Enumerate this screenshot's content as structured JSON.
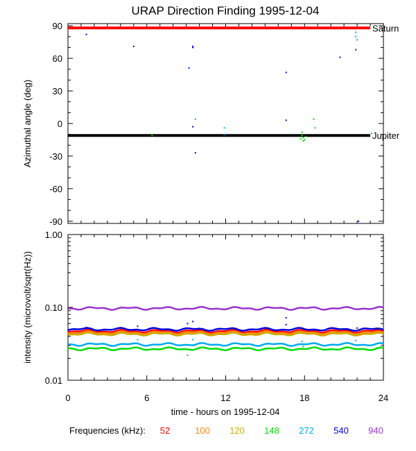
{
  "chart_data": {
    "title": "URAP Direction Finding  1995-12-04",
    "xlabel": "time - hours on 1995-12-04",
    "xlim": [
      0,
      24
    ],
    "x_ticks": [
      0,
      6,
      12,
      18,
      24
    ],
    "panels": [
      {
        "id": "azimuth",
        "type": "scatter",
        "ylabel": "Azimuthal angle (deg)",
        "ylim": [
          -92,
          92
        ],
        "y_ticks": [
          90,
          60,
          30,
          0,
          -30,
          -60,
          -90
        ],
        "reference_lines": [
          {
            "name": "Saturn",
            "y": 88,
            "color": "#ff0000",
            "x_from": 0,
            "x_to": 23
          },
          {
            "name": "Jupiter",
            "y": -11,
            "color": "#000000",
            "x_from": 0,
            "x_to": 23
          }
        ],
        "points": [
          {
            "x": 1.4,
            "y": 82,
            "color": "#0000dd"
          },
          {
            "x": 5.0,
            "y": 71,
            "color": "#0000dd"
          },
          {
            "x": 9.5,
            "y": 71,
            "color": "#0000dd"
          },
          {
            "x": 9.5,
            "y": 70,
            "color": "#0000dd"
          },
          {
            "x": 9.2,
            "y": 51,
            "color": "#0000dd"
          },
          {
            "x": 9.5,
            "y": -3,
            "color": "#0000dd"
          },
          {
            "x": 9.7,
            "y": 4,
            "color": "#00aaee"
          },
          {
            "x": 9.7,
            "y": -27,
            "color": "#0000dd"
          },
          {
            "x": 6.4,
            "y": -11,
            "color": "#00dd00"
          },
          {
            "x": 11.9,
            "y": -4,
            "color": "#00aaee"
          },
          {
            "x": 11.9,
            "y": -10,
            "color": "#00aaee"
          },
          {
            "x": 16.6,
            "y": 47,
            "color": "#0000dd"
          },
          {
            "x": 16.6,
            "y": 3,
            "color": "#0000dd"
          },
          {
            "x": 17.8,
            "y": -8,
            "color": "#00dd00"
          },
          {
            "x": 17.8,
            "y": -11,
            "color": "#00dd00"
          },
          {
            "x": 17.9,
            "y": -13,
            "color": "#00dd00"
          },
          {
            "x": 18.0,
            "y": -15,
            "color": "#00dd00"
          },
          {
            "x": 17.7,
            "y": -14,
            "color": "#00dd00"
          },
          {
            "x": 18.1,
            "y": -12,
            "color": "#00dd00"
          },
          {
            "x": 17.9,
            "y": -16,
            "color": "#00dd00"
          },
          {
            "x": 18.7,
            "y": 4,
            "color": "#00dd00"
          },
          {
            "x": 18.8,
            "y": -4,
            "color": "#00dd00"
          },
          {
            "x": 20.7,
            "y": 61,
            "color": "#0000dd"
          },
          {
            "x": 21.9,
            "y": 84,
            "color": "#00aaee"
          },
          {
            "x": 21.9,
            "y": 80,
            "color": "#00aaee"
          },
          {
            "x": 22.0,
            "y": 77,
            "color": "#00aaee"
          },
          {
            "x": 21.9,
            "y": 68,
            "color": "#0000dd"
          },
          {
            "x": 22.1,
            "y": -90,
            "color": "#0000dd"
          },
          {
            "x": 23.1,
            "y": -9,
            "color": "#00aaee"
          }
        ]
      },
      {
        "id": "intensity",
        "type": "line",
        "ylabel": "intensity (microvolt/sqrt(Hz))",
        "y_scale": "log",
        "ylim": [
          0.01,
          1.0
        ],
        "y_ticks": [
          1.0,
          0.1,
          0.01
        ],
        "y_tick_labels": [
          "1.00",
          "0.10",
          "0.01"
        ],
        "series": [
          {
            "frequency": "52",
            "color": "#ff0000",
            "level": 0.047,
            "spikes": []
          },
          {
            "frequency": "100",
            "color": "#ff8800",
            "level": 0.045,
            "spikes": []
          },
          {
            "frequency": "120",
            "color": "#ccaa00",
            "level": 0.043,
            "spikes": []
          },
          {
            "frequency": "148",
            "color": "#00dd00",
            "level": 0.027,
            "spikes": [
              [
                9.6,
                0.03
              ],
              [
                17.9,
                0.029
              ]
            ]
          },
          {
            "frequency": "272",
            "color": "#00aaee",
            "level": 0.031,
            "spikes": [
              [
                5.3,
                0.036
              ],
              [
                9.5,
                0.036
              ],
              [
                9.1,
                0.022
              ],
              [
                17.8,
                0.034
              ],
              [
                21.9,
                0.035
              ]
            ]
          },
          {
            "frequency": "540",
            "color": "#0000dd",
            "level": 0.05,
            "spikes": [
              [
                1.4,
                0.053
              ],
              [
                5.3,
                0.055
              ],
              [
                9.1,
                0.06
              ],
              [
                9.5,
                0.064
              ],
              [
                16.6,
                0.072
              ],
              [
                16.6,
                0.058
              ],
              [
                22.0,
                0.052
              ]
            ]
          },
          {
            "frequency": "940",
            "color": "#9933cc",
            "level": 0.097,
            "spikes": []
          }
        ]
      }
    ],
    "legend": {
      "label": "Frequencies (kHz):",
      "placement": "bottom"
    }
  }
}
